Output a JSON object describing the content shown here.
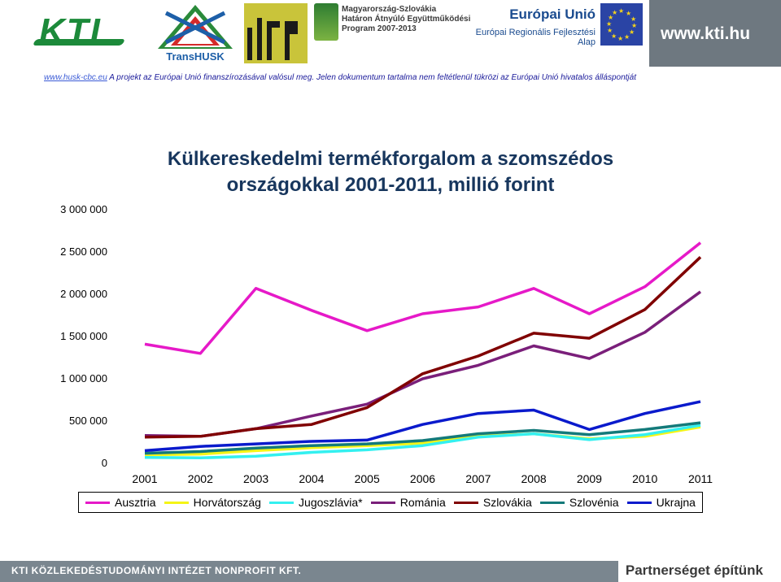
{
  "header": {
    "kti_logo": "KTI",
    "transhusk_logo": "TransHUSK",
    "hu_sk_program": "Magyarország-Szlovákia\nHatáron Átnyúló Együttműködési\nProgram 2007-2013",
    "eu_title": "Európai Unió",
    "eu_fund": "Európai Regionális Fejlesztési Alap",
    "kti_url": "www.kti.hu",
    "disclaimer_link": "www.husk-cbc.eu",
    "disclaimer_text": "A projekt az Európai Unió finanszírozásával valósul meg. Jelen dokumentum tartalma nem feltétlenül tükrözi az Európai Unió hivatalos álláspontját"
  },
  "chart_data": {
    "type": "line",
    "title_line1": "Külkereskedelmi termékforgalom a szomszédos",
    "title_line2": "országokkal 2001-2011, millió forint",
    "x": [
      "2001",
      "2002",
      "2003",
      "2004",
      "2005",
      "2006",
      "2007",
      "2008",
      "2009",
      "2010",
      "2011"
    ],
    "ylim": [
      0,
      3000000
    ],
    "yticks": [
      0,
      500000,
      1000000,
      1500000,
      2000000,
      2500000,
      3000000
    ],
    "ytick_labels": [
      "0",
      "500 000",
      "1 000 000",
      "1 500 000",
      "2 000 000",
      "2 500 000",
      "3 000 000"
    ],
    "legend_position": "bottom",
    "grid": false,
    "series": [
      {
        "name": "Ausztria",
        "color": "#e619c8",
        "values": [
          1400000,
          1290000,
          2060000,
          1800000,
          1560000,
          1760000,
          1840000,
          2060000,
          1760000,
          2080000,
          2600000
        ]
      },
      {
        "name": "Horvátország",
        "color": "#f5f516",
        "values": [
          90000,
          100000,
          140000,
          175000,
          200000,
          230000,
          310000,
          340000,
          280000,
          310000,
          420000
        ]
      },
      {
        "name": "Jugoszlávia*",
        "color": "#33f0f0",
        "values": [
          60000,
          55000,
          75000,
          120000,
          150000,
          200000,
          300000,
          340000,
          270000,
          330000,
          440000
        ]
      },
      {
        "name": "Románia",
        "color": "#7a1f7a",
        "values": [
          320000,
          310000,
          400000,
          550000,
          690000,
          990000,
          1150000,
          1380000,
          1230000,
          1540000,
          2020000
        ]
      },
      {
        "name": "Szlovákia",
        "color": "#800000",
        "values": [
          300000,
          310000,
          400000,
          450000,
          650000,
          1050000,
          1260000,
          1530000,
          1470000,
          1810000,
          2430000
        ]
      },
      {
        "name": "Szlovénia",
        "color": "#137a7a",
        "values": [
          110000,
          130000,
          170000,
          200000,
          220000,
          260000,
          340000,
          380000,
          330000,
          390000,
          470000
        ]
      },
      {
        "name": "Ukrajna",
        "color": "#0a1acc",
        "values": [
          140000,
          190000,
          220000,
          250000,
          265000,
          450000,
          580000,
          620000,
          390000,
          580000,
          720000
        ]
      }
    ]
  },
  "footer": {
    "institute": "KTI KÖZLEKEDÉSTUDOMÁNYI INTÉZET NONPROFIT KFT.",
    "slogan": "Partnerséget építünk"
  }
}
